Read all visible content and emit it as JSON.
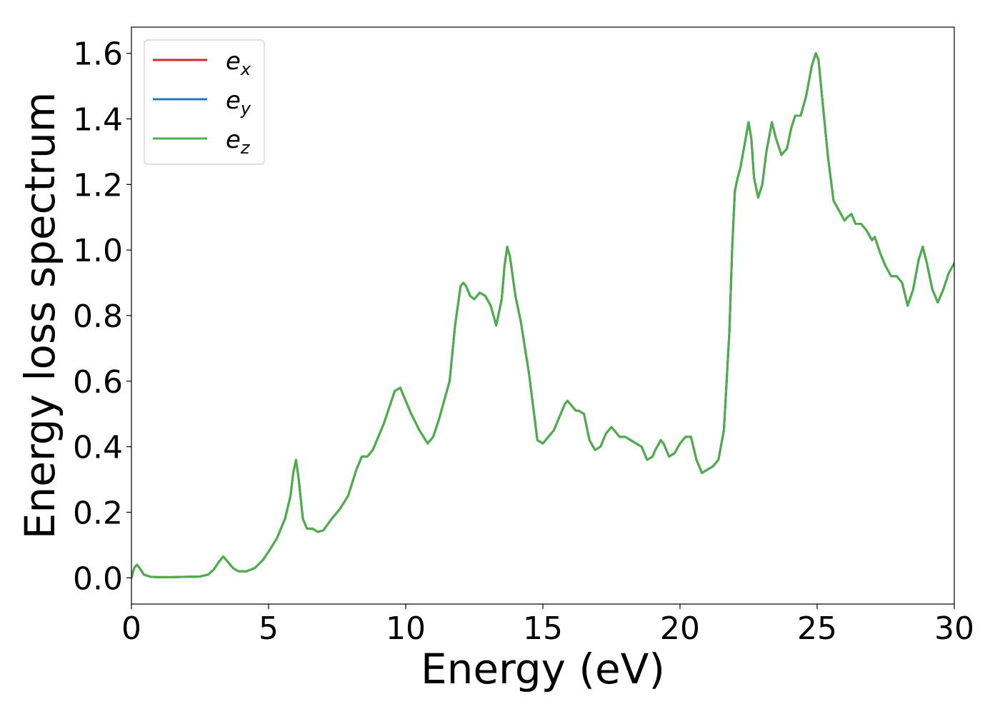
{
  "chart_data": {
    "type": "line",
    "title": "",
    "xlabel": "Energy (eV)",
    "ylabel": "Energy loss spectrum",
    "xlim": [
      0,
      30
    ],
    "ylim": [
      -0.08,
      1.68
    ],
    "xticks": [
      0,
      5,
      10,
      15,
      20,
      25,
      30
    ],
    "xtick_labels": [
      "0",
      "5",
      "10",
      "15",
      "20",
      "25",
      "30"
    ],
    "yticks": [
      0.0,
      0.2,
      0.4,
      0.6,
      0.8,
      1.0,
      1.2,
      1.4,
      1.6
    ],
    "ytick_labels": [
      "0.0",
      "0.2",
      "0.4",
      "0.6",
      "0.8",
      "1.0",
      "1.2",
      "1.4",
      "1.6"
    ],
    "grid": false,
    "legend_position": "top-left",
    "legend": [
      {
        "base": "e",
        "sub": "x",
        "color": "#d62728"
      },
      {
        "base": "e",
        "sub": "y",
        "color": "#1f77b4"
      },
      {
        "base": "e",
        "sub": "z",
        "color": "#4daf4a"
      }
    ],
    "x": [
      0.0,
      0.1,
      0.2,
      0.3,
      0.45,
      0.7,
      1.0,
      1.5,
      2.0,
      2.5,
      2.8,
      3.0,
      3.2,
      3.35,
      3.5,
      3.7,
      3.9,
      4.2,
      4.5,
      4.8,
      5.0,
      5.3,
      5.6,
      5.8,
      5.9,
      6.0,
      6.1,
      6.25,
      6.4,
      6.6,
      6.8,
      7.0,
      7.3,
      7.6,
      7.9,
      8.2,
      8.4,
      8.6,
      8.8,
      9.0,
      9.2,
      9.4,
      9.6,
      9.8,
      10.0,
      10.2,
      10.5,
      10.8,
      11.0,
      11.2,
      11.4,
      11.6,
      11.8,
      12.0,
      12.1,
      12.2,
      12.35,
      12.5,
      12.7,
      12.9,
      13.1,
      13.3,
      13.5,
      13.6,
      13.7,
      13.8,
      14.0,
      14.2,
      14.5,
      14.8,
      15.0,
      15.2,
      15.4,
      15.6,
      15.8,
      15.9,
      16.0,
      16.2,
      16.3,
      16.5,
      16.7,
      16.9,
      17.1,
      17.3,
      17.5,
      17.6,
      17.8,
      18.0,
      18.2,
      18.4,
      18.6,
      18.8,
      19.0,
      19.1,
      19.3,
      19.4,
      19.6,
      19.8,
      20.0,
      20.2,
      20.4,
      20.6,
      20.8,
      21.0,
      21.2,
      21.4,
      21.6,
      21.8,
      21.9,
      22.0,
      22.1,
      22.2,
      22.35,
      22.5,
      22.6,
      22.7,
      22.85,
      23.0,
      23.15,
      23.35,
      23.5,
      23.7,
      23.9,
      24.05,
      24.2,
      24.4,
      24.6,
      24.8,
      24.95,
      25.05,
      25.2,
      25.4,
      25.6,
      25.8,
      26.0,
      26.1,
      26.25,
      26.4,
      26.6,
      26.8,
      27.0,
      27.1,
      27.3,
      27.5,
      27.7,
      27.9,
      28.1,
      28.3,
      28.5,
      28.7,
      28.85,
      29.0,
      29.2,
      29.4,
      29.6,
      29.8,
      30.0
    ],
    "series": [
      {
        "color": "#d62728",
        "values": [
          0.0,
          0.03,
          0.04,
          0.03,
          0.01,
          0.003,
          0.002,
          0.002,
          0.003,
          0.004,
          0.01,
          0.025,
          0.05,
          0.065,
          0.05,
          0.03,
          0.02,
          0.02,
          0.03,
          0.055,
          0.08,
          0.12,
          0.18,
          0.25,
          0.32,
          0.36,
          0.3,
          0.18,
          0.15,
          0.15,
          0.14,
          0.145,
          0.18,
          0.21,
          0.25,
          0.33,
          0.37,
          0.37,
          0.39,
          0.43,
          0.47,
          0.52,
          0.57,
          0.58,
          0.54,
          0.5,
          0.45,
          0.41,
          0.43,
          0.48,
          0.54,
          0.6,
          0.77,
          0.89,
          0.9,
          0.89,
          0.86,
          0.85,
          0.87,
          0.86,
          0.83,
          0.77,
          0.85,
          0.95,
          1.01,
          0.98,
          0.86,
          0.78,
          0.62,
          0.42,
          0.41,
          0.43,
          0.45,
          0.49,
          0.53,
          0.54,
          0.53,
          0.51,
          0.51,
          0.5,
          0.42,
          0.39,
          0.4,
          0.44,
          0.46,
          0.45,
          0.43,
          0.43,
          0.42,
          0.41,
          0.4,
          0.36,
          0.37,
          0.39,
          0.42,
          0.41,
          0.37,
          0.38,
          0.41,
          0.43,
          0.43,
          0.36,
          0.32,
          0.33,
          0.34,
          0.36,
          0.45,
          0.75,
          1.0,
          1.18,
          1.22,
          1.25,
          1.32,
          1.39,
          1.34,
          1.22,
          1.16,
          1.2,
          1.3,
          1.39,
          1.34,
          1.29,
          1.31,
          1.37,
          1.41,
          1.41,
          1.47,
          1.56,
          1.6,
          1.58,
          1.45,
          1.28,
          1.15,
          1.12,
          1.09,
          1.1,
          1.11,
          1.08,
          1.08,
          1.06,
          1.03,
          1.04,
          0.99,
          0.95,
          0.92,
          0.92,
          0.9,
          0.83,
          0.88,
          0.97,
          1.01,
          0.96,
          0.88,
          0.84,
          0.88,
          0.93,
          0.96
        ]
      },
      {
        "color": "#1f77b4",
        "values": [
          0.0,
          0.03,
          0.04,
          0.03,
          0.01,
          0.003,
          0.002,
          0.002,
          0.003,
          0.004,
          0.01,
          0.025,
          0.05,
          0.065,
          0.05,
          0.03,
          0.02,
          0.02,
          0.03,
          0.055,
          0.08,
          0.12,
          0.18,
          0.25,
          0.32,
          0.36,
          0.3,
          0.18,
          0.15,
          0.15,
          0.14,
          0.145,
          0.18,
          0.21,
          0.25,
          0.33,
          0.37,
          0.37,
          0.39,
          0.43,
          0.47,
          0.52,
          0.57,
          0.58,
          0.54,
          0.5,
          0.45,
          0.41,
          0.43,
          0.48,
          0.54,
          0.6,
          0.77,
          0.89,
          0.9,
          0.89,
          0.86,
          0.85,
          0.87,
          0.86,
          0.83,
          0.77,
          0.85,
          0.95,
          1.01,
          0.98,
          0.86,
          0.78,
          0.62,
          0.42,
          0.41,
          0.43,
          0.45,
          0.49,
          0.53,
          0.54,
          0.53,
          0.51,
          0.51,
          0.5,
          0.42,
          0.39,
          0.4,
          0.44,
          0.46,
          0.45,
          0.43,
          0.43,
          0.42,
          0.41,
          0.4,
          0.36,
          0.37,
          0.39,
          0.42,
          0.41,
          0.37,
          0.38,
          0.41,
          0.43,
          0.43,
          0.36,
          0.32,
          0.33,
          0.34,
          0.36,
          0.45,
          0.75,
          1.0,
          1.18,
          1.22,
          1.25,
          1.32,
          1.39,
          1.34,
          1.22,
          1.16,
          1.2,
          1.3,
          1.39,
          1.34,
          1.29,
          1.31,
          1.37,
          1.41,
          1.41,
          1.47,
          1.56,
          1.6,
          1.58,
          1.45,
          1.28,
          1.15,
          1.12,
          1.09,
          1.1,
          1.11,
          1.08,
          1.08,
          1.06,
          1.03,
          1.04,
          0.99,
          0.95,
          0.92,
          0.92,
          0.9,
          0.83,
          0.88,
          0.97,
          1.01,
          0.96,
          0.88,
          0.84,
          0.88,
          0.93,
          0.96
        ]
      },
      {
        "color": "#4daf4a",
        "values": [
          0.0,
          0.03,
          0.04,
          0.03,
          0.01,
          0.003,
          0.002,
          0.002,
          0.003,
          0.004,
          0.01,
          0.025,
          0.05,
          0.065,
          0.05,
          0.03,
          0.02,
          0.02,
          0.03,
          0.055,
          0.08,
          0.12,
          0.18,
          0.25,
          0.32,
          0.36,
          0.3,
          0.18,
          0.15,
          0.15,
          0.14,
          0.145,
          0.18,
          0.21,
          0.25,
          0.33,
          0.37,
          0.37,
          0.39,
          0.43,
          0.47,
          0.52,
          0.57,
          0.58,
          0.54,
          0.5,
          0.45,
          0.41,
          0.43,
          0.48,
          0.54,
          0.6,
          0.77,
          0.89,
          0.9,
          0.89,
          0.86,
          0.85,
          0.87,
          0.86,
          0.83,
          0.77,
          0.85,
          0.95,
          1.01,
          0.98,
          0.86,
          0.78,
          0.62,
          0.42,
          0.41,
          0.43,
          0.45,
          0.49,
          0.53,
          0.54,
          0.53,
          0.51,
          0.51,
          0.5,
          0.42,
          0.39,
          0.4,
          0.44,
          0.46,
          0.45,
          0.43,
          0.43,
          0.42,
          0.41,
          0.4,
          0.36,
          0.37,
          0.39,
          0.42,
          0.41,
          0.37,
          0.38,
          0.41,
          0.43,
          0.43,
          0.36,
          0.32,
          0.33,
          0.34,
          0.36,
          0.45,
          0.75,
          1.0,
          1.18,
          1.22,
          1.25,
          1.32,
          1.39,
          1.34,
          1.22,
          1.16,
          1.2,
          1.3,
          1.39,
          1.34,
          1.29,
          1.31,
          1.37,
          1.41,
          1.41,
          1.47,
          1.56,
          1.6,
          1.58,
          1.45,
          1.28,
          1.15,
          1.12,
          1.09,
          1.1,
          1.11,
          1.08,
          1.08,
          1.06,
          1.03,
          1.04,
          0.99,
          0.95,
          0.92,
          0.92,
          0.9,
          0.83,
          0.88,
          0.97,
          1.01,
          0.96,
          0.88,
          0.84,
          0.88,
          0.93,
          0.96
        ]
      }
    ]
  }
}
